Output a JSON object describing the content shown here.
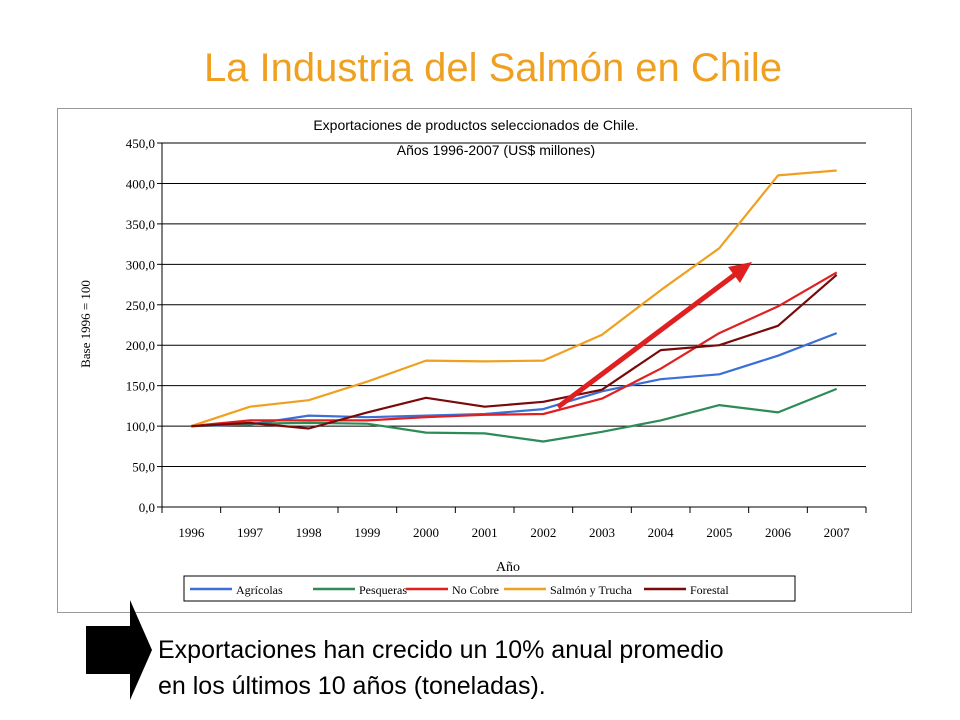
{
  "slide": {
    "title": "La Industria del Salmón en Chile",
    "footer_line1": "Exportaciones han crecido un 10% anual promedio",
    "footer_line2": "en los últimos 10 años (toneladas)."
  },
  "colors": {
    "title": "#f0a020",
    "annotation_arrow": "#e02020",
    "pointer_arrow": "#000000"
  },
  "chart_data": {
    "type": "line",
    "title": "Exportaciones de productos seleccionados de Chile.",
    "subtitle": "Años 1996-2007 (US$ millones)",
    "xlabel": "Año",
    "ylabel": "Base 1996 = 100",
    "ylim": [
      0,
      450
    ],
    "yticks": [
      "0,0",
      "50,0",
      "100,0",
      "150,0",
      "200,0",
      "250,0",
      "300,0",
      "350,0",
      "400,0",
      "450,0"
    ],
    "grid": true,
    "legend_position": "bottom",
    "categories": [
      "1996",
      "1997",
      "1998",
      "1999",
      "2000",
      "2001",
      "2002",
      "2003",
      "2004",
      "2005",
      "2006",
      "2007"
    ],
    "series": [
      {
        "name": "Agrícolas",
        "color": "#3a6fd8",
        "values": [
          100,
          102,
          113,
          111,
          113,
          115,
          121,
          143,
          158,
          164,
          187,
          215
        ]
      },
      {
        "name": "Pesqueras",
        "color": "#2e8b57",
        "values": [
          100,
          103,
          104,
          103,
          92,
          91,
          81,
          93,
          107,
          126,
          117,
          146
        ]
      },
      {
        "name": "No Cobre",
        "color": "#e02020",
        "values": [
          100,
          107,
          107,
          107,
          111,
          114,
          115,
          134,
          171,
          215,
          248,
          290
        ]
      },
      {
        "name": "Salmón y Trucha",
        "color": "#f0a020",
        "values": [
          100,
          124,
          132,
          155,
          181,
          180,
          181,
          213,
          268,
          320,
          410,
          416
        ]
      },
      {
        "name": "Forestal",
        "color": "#7a0a0a",
        "values": [
          100,
          104,
          97,
          117,
          135,
          124,
          130,
          145,
          194,
          200,
          224,
          287
        ]
      }
    ]
  }
}
